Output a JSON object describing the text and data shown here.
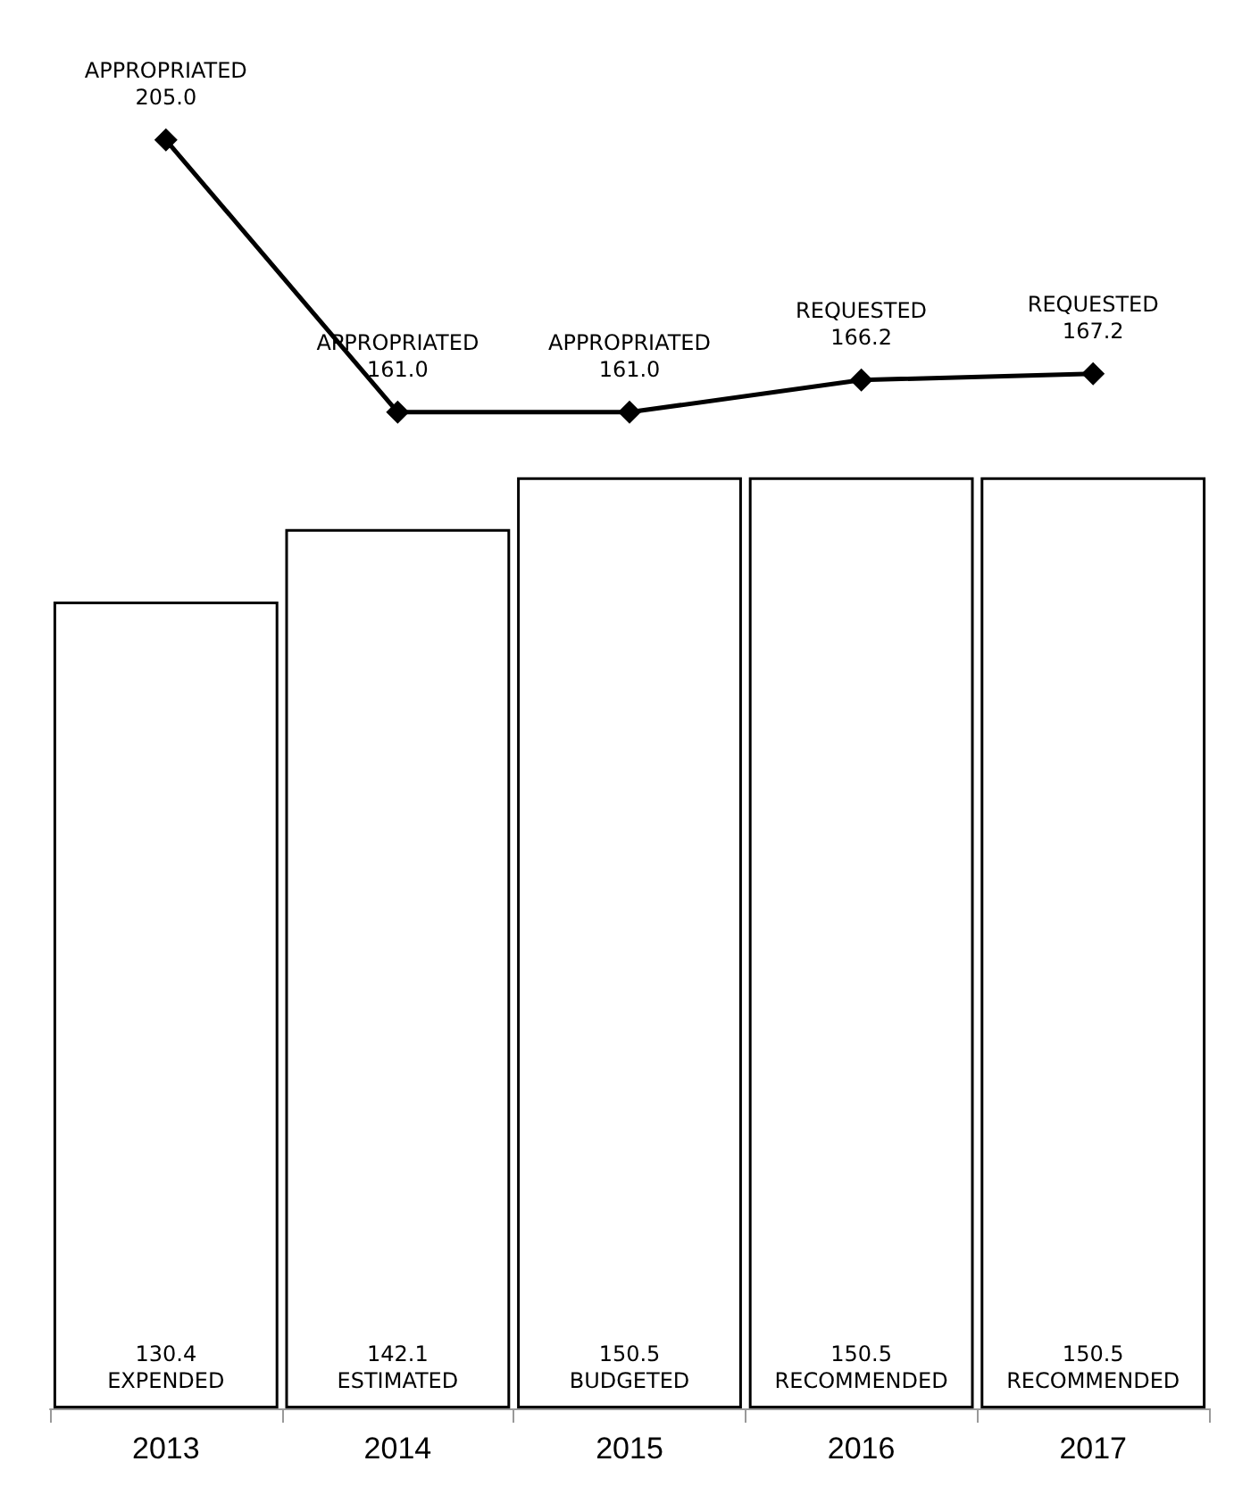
{
  "chart_data": {
    "type": "bar",
    "categories": [
      "2013",
      "2014",
      "2015",
      "2016",
      "2017"
    ],
    "series": [
      {
        "color": "#ffffff",
        "values": [
          130.4,
          142.1,
          150.5,
          150.5,
          150.5
        ],
        "value_labels": [
          "130.4\nEXPENDED",
          "142.1\nESTIMATED",
          "150.5\nBUDGETED",
          "150.5\nRECOMMENDED",
          "150.5\nRECOMMENDED"
        ]
      },
      {
        "type": "line",
        "color": "#000000",
        "marker": "diamond",
        "values": [
          205.0,
          161.0,
          161.0,
          166.2,
          167.2
        ],
        "value_labels": [
          "APPROPRIATED\n205.0",
          "APPROPRIATED\n161.0",
          "APPROPRIATED\n161.0",
          "REQUESTED\n166.2",
          "REQUESTED\n167.2"
        ]
      }
    ]
  }
}
